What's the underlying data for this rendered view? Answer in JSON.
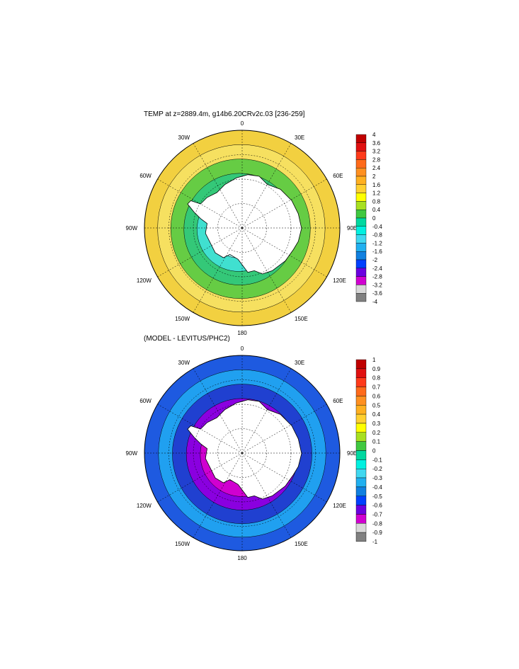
{
  "panels": [
    {
      "title": "TEMP at z=2889.4m, g14b6.20CRv2c.03 [236-259]",
      "colorbar": {
        "labels": [
          "4",
          "3.6",
          "3.2",
          "2.8",
          "2.4",
          "2",
          "1.6",
          "1.2",
          "0.8",
          "0.4",
          "0",
          "-0.4",
          "-0.8",
          "-1.2",
          "-1.6",
          "-2",
          "-2.4",
          "-2.8",
          "-3.2",
          "-3.6",
          "-4"
        ],
        "colors": [
          "#c00000",
          "#e01010",
          "#ff3a1a",
          "#ff6a1a",
          "#ff9020",
          "#ffb020",
          "#ffd030",
          "#ffff00",
          "#a8e020",
          "#40c840",
          "#00d8a0",
          "#00f0e0",
          "#40d8f0",
          "#20b0f0",
          "#1080e0",
          "#0040ff",
          "#6a00e0",
          "#d000d0",
          "#d8d8d8",
          "#808080"
        ]
      },
      "rings": [
        "#f2d040",
        "#f6e060",
        "#66cc44",
        "#34c878",
        "#40e0d0",
        "#a8f0f0",
        "#ffffff"
      ]
    },
    {
      "title": "(MODEL - LEVITUS/PHC2)",
      "colorbar": {
        "labels": [
          "1",
          "0.9",
          "0.8",
          "0.7",
          "0.6",
          "0.5",
          "0.4",
          "0.3",
          "0.2",
          "0.1",
          "0",
          "-0.1",
          "-0.2",
          "-0.3",
          "-0.4",
          "-0.5",
          "-0.6",
          "-0.7",
          "-0.8",
          "-0.9",
          "-1"
        ],
        "colors": [
          "#c00000",
          "#e01010",
          "#ff3a1a",
          "#ff6a1a",
          "#ff9020",
          "#ffb020",
          "#ffd030",
          "#ffff00",
          "#a8e020",
          "#40c840",
          "#00d8a0",
          "#00f0e0",
          "#40d8f0",
          "#20b0f0",
          "#1080e0",
          "#0040ff",
          "#6a00e0",
          "#d000d0",
          "#d8d8d8",
          "#808080"
        ]
      },
      "rings": [
        "#1e5ae0",
        "#20a0f0",
        "#2040d0",
        "#8a00e0",
        "#d000d0",
        "#e060e0",
        "#ffffff"
      ]
    }
  ],
  "map_labels": {
    "lon_0": "0",
    "lon_30w": "30W",
    "lon_30e": "30E",
    "lon_60w": "60W",
    "lon_60e": "60E",
    "lon_90w": "90W",
    "lon_90e": "90E",
    "lon_120w": "120W",
    "lon_120e": "120E",
    "lon_150w": "150W",
    "lon_150e": "150E",
    "lon_180": "180"
  }
}
